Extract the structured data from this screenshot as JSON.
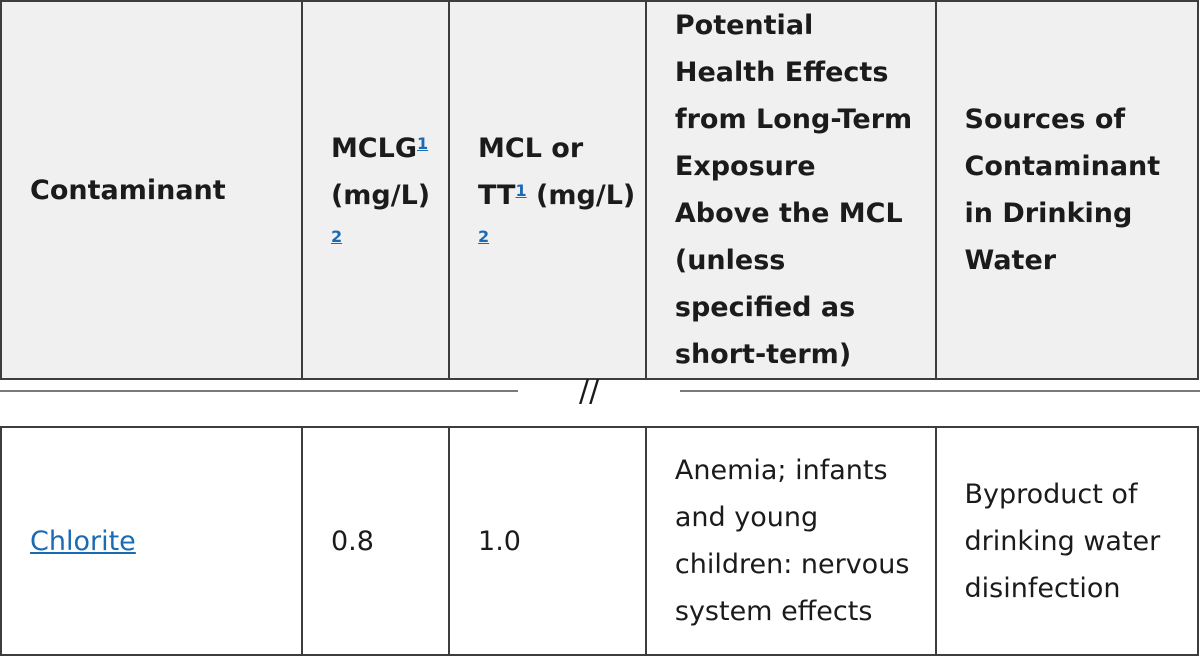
{
  "header": {
    "contaminant": "Contaminant",
    "mclg": "MCLG",
    "mclg_unit": "(mg/L)",
    "mcl_line1": "MCL or",
    "mcl_line2": "TT",
    "mcl_unit": "(mg/L)",
    "fn1": "1",
    "fn2": "2",
    "health": "Potential Health Effects from Long-Term Exposure Above the MCL (unless specified as short-term)",
    "sources": "Sources of Contaminant in Drinking Water"
  },
  "break_mark": "//",
  "row": {
    "contaminant": "Chlorite",
    "mclg": "0.8",
    "mcl": "1.0",
    "health": "Anemia; infants and young children: nervous system effects",
    "sources": "Byproduct of drinking water disinfection"
  }
}
